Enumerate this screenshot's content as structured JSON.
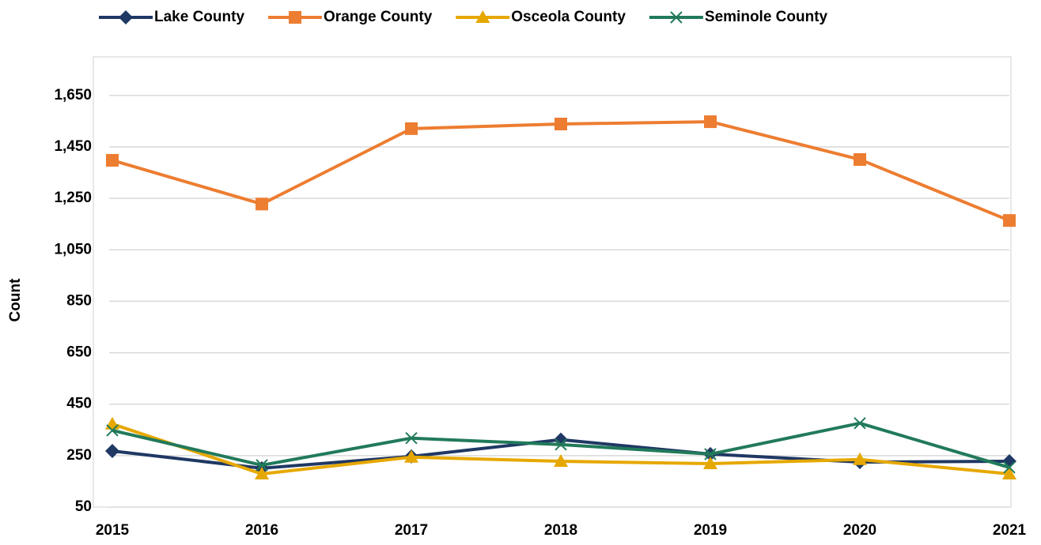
{
  "chart_data": {
    "type": "line",
    "y_label": "Count",
    "categories": [
      "2015",
      "2016",
      "2017",
      "2018",
      "2019",
      "2020",
      "2021"
    ],
    "series": [
      {
        "name": "Lake County",
        "color": "#1f3864",
        "marker": "diamond",
        "values": [
          268,
          201,
          247,
          312,
          256,
          225,
          228
        ]
      },
      {
        "name": "Orange County",
        "color": "#ed7d31",
        "marker": "square",
        "values": [
          1398,
          1228,
          1521,
          1539,
          1548,
          1401,
          1164
        ]
      },
      {
        "name": "Osceola County",
        "color": "#e6a800",
        "marker": "triangle",
        "values": [
          373,
          179,
          244,
          228,
          219,
          235,
          179
        ]
      },
      {
        "name": "Seminole County",
        "color": "#217a5a",
        "marker": "x",
        "values": [
          348,
          213,
          318,
          293,
          256,
          376,
          204
        ]
      }
    ],
    "ylim": [
      50,
      1800
    ],
    "yticks": [
      {
        "value": 50,
        "label": "50"
      },
      {
        "value": 250,
        "label": "250"
      },
      {
        "value": 450,
        "label": "450"
      },
      {
        "value": 650,
        "label": "650"
      },
      {
        "value": 850,
        "label": "850"
      },
      {
        "value": 1050,
        "label": "1,050"
      },
      {
        "value": 1250,
        "label": "1,250"
      },
      {
        "value": 1450,
        "label": "1,450"
      },
      {
        "value": 1650,
        "label": "1,650"
      }
    ],
    "grid": true,
    "legend": "top"
  }
}
